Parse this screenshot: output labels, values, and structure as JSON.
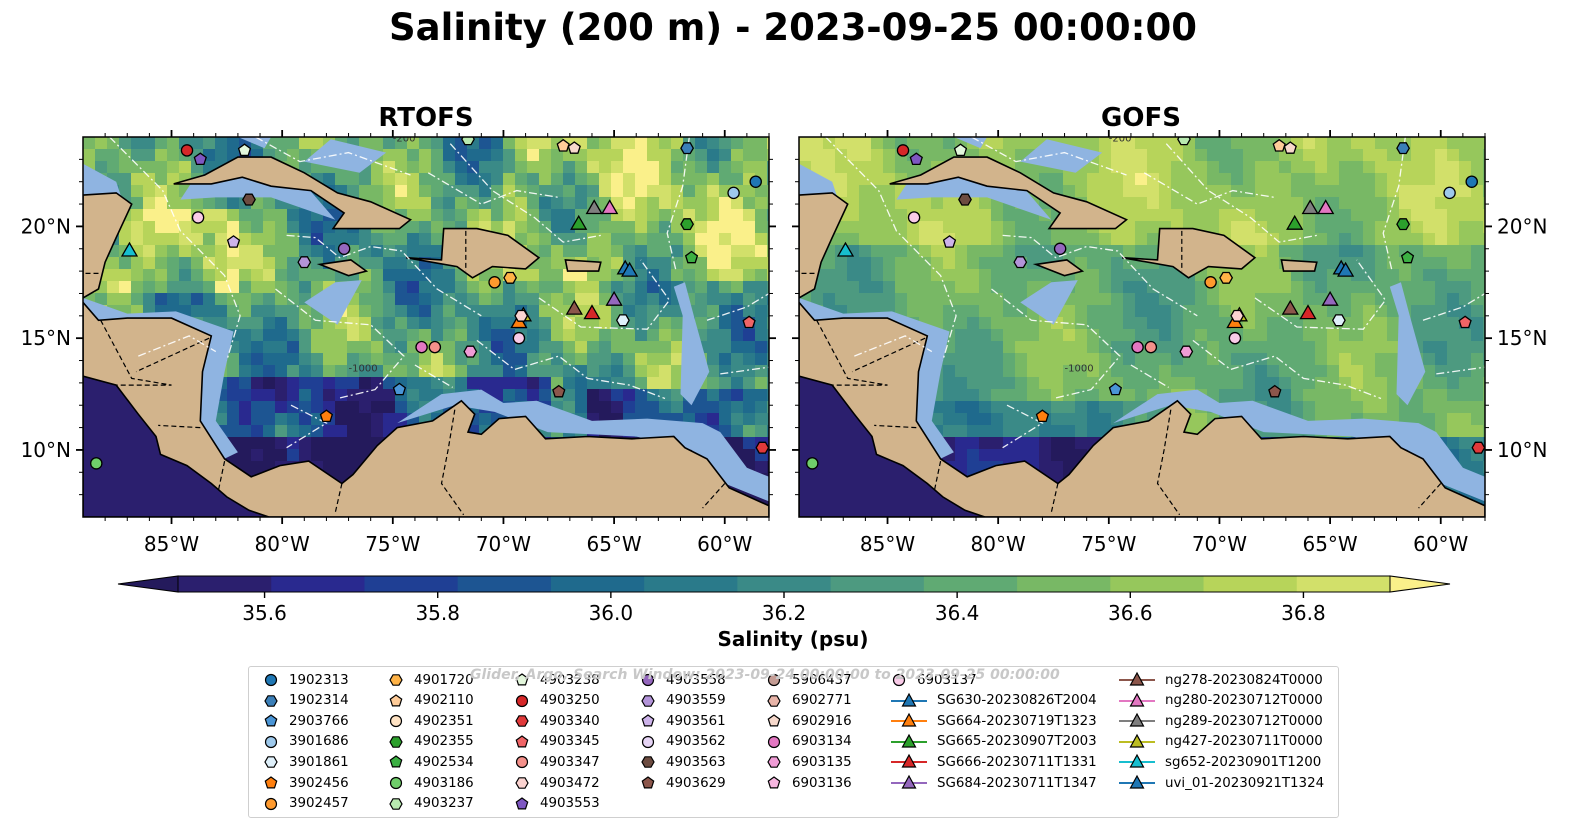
{
  "title": "Salinity (200 m) - 2023-09-25 00:00:00",
  "panels": [
    {
      "title": "RTOFS"
    },
    {
      "title": "GOFS"
    }
  ],
  "map": {
    "lon_range": [
      -89.0,
      -58.0
    ],
    "lat_range": [
      7.0,
      24.0
    ],
    "lon_ticks": [
      "85°W",
      "80°W",
      "75°W",
      "70°W",
      "65°W",
      "60°W"
    ],
    "lat_ticks": [
      "20°N",
      "15°N",
      "10°N"
    ],
    "land_color": "#d2b48c",
    "shelf_color": "#8fb4e1",
    "contour_labels": [
      "-1000",
      "-200"
    ]
  },
  "colorbar": {
    "label": "Salinity (psu)",
    "min": 35.5,
    "max": 36.9,
    "ticks": [
      "35.6",
      "35.8",
      "36.0",
      "36.2",
      "36.4",
      "36.6",
      "36.8"
    ],
    "colors": [
      "#2b1f6e",
      "#29298f",
      "#1f3f94",
      "#1d5592",
      "#1f6a8d",
      "#2a7a8a",
      "#3a8a87",
      "#4d9a80",
      "#60aa73",
      "#78b865",
      "#96c75c",
      "#b7d45a",
      "#d2e06a"
    ],
    "extend_high": "#faf08a",
    "extend_low": "#241a5c"
  },
  "legend": {
    "watermark": "Glider, Argo, Search Window: 2023-09-24 00:00:00 to 2023-09-25 00:00:00",
    "columns": [
      [
        {
          "label": "1902313",
          "marker": "circle",
          "color": "#1f77b4"
        },
        {
          "label": "1902314",
          "marker": "hexagon",
          "color": "#3b7fb8"
        },
        {
          "label": "2903766",
          "marker": "pentagon",
          "color": "#4a95d6"
        },
        {
          "label": "3901686",
          "marker": "circle",
          "color": "#9ec9ec"
        },
        {
          "label": "3901861",
          "marker": "hexagon",
          "color": "#dff0fa"
        },
        {
          "label": "3902456",
          "marker": "pentagon",
          "color": "#ff7f0e"
        },
        {
          "label": "3902457",
          "marker": "circle",
          "color": "#ff9a2e"
        }
      ],
      [
        {
          "label": "4901720",
          "marker": "hexagon",
          "color": "#ffb347"
        },
        {
          "label": "4902110",
          "marker": "pentagon",
          "color": "#ffcc99"
        },
        {
          "label": "4902351",
          "marker": "circle",
          "color": "#ffe3c4"
        },
        {
          "label": "4902355",
          "marker": "hexagon",
          "color": "#2ca02c"
        },
        {
          "label": "4902534",
          "marker": "pentagon",
          "color": "#3cb043"
        },
        {
          "label": "4903186",
          "marker": "circle",
          "color": "#6fce6a"
        },
        {
          "label": "4903237",
          "marker": "hexagon",
          "color": "#b8eab0"
        }
      ],
      [
        {
          "label": "4903238",
          "marker": "pentagon",
          "color": "#e3f7dc"
        },
        {
          "label": "4903250",
          "marker": "circle",
          "color": "#d62728"
        },
        {
          "label": "4903340",
          "marker": "hexagon",
          "color": "#e0393a"
        },
        {
          "label": "4903345",
          "marker": "pentagon",
          "color": "#f06466"
        },
        {
          "label": "4903347",
          "marker": "circle",
          "color": "#f4908a"
        },
        {
          "label": "4903472",
          "marker": "hexagon",
          "color": "#fbd3d0"
        },
        {
          "label": "4903553",
          "marker": "pentagon",
          "color": "#7e57c2"
        }
      ],
      [
        {
          "label": "4903558",
          "marker": "circle",
          "color": "#9467bd"
        },
        {
          "label": "4903559",
          "marker": "hexagon",
          "color": "#b394d9"
        },
        {
          "label": "4903561",
          "marker": "pentagon",
          "color": "#cdb3ea"
        },
        {
          "label": "4903562",
          "marker": "circle",
          "color": "#e6d4f5"
        },
        {
          "label": "4903563",
          "marker": "hexagon",
          "color": "#6d4c41"
        },
        {
          "label": "4903629",
          "marker": "pentagon",
          "color": "#8c564b"
        }
      ],
      [
        {
          "label": "5906437",
          "marker": "circle",
          "color": "#c49c94"
        },
        {
          "label": "6902771",
          "marker": "hexagon",
          "color": "#e8b4a8"
        },
        {
          "label": "6902916",
          "marker": "pentagon",
          "color": "#f7d9cc"
        },
        {
          "label": "6903134",
          "marker": "circle",
          "color": "#e377c2"
        },
        {
          "label": "6903135",
          "marker": "hexagon",
          "color": "#f09cd6"
        },
        {
          "label": "6903136",
          "marker": "pentagon",
          "color": "#f7b6e0"
        }
      ],
      [
        {
          "label": "6903137",
          "marker": "circle",
          "color": "#f9cbe8"
        },
        {
          "label": "SG630-20230826T2004",
          "marker": "tri",
          "color": "#1f77b4"
        },
        {
          "label": "SG664-20230719T1323",
          "marker": "tri",
          "color": "#ff7f0e"
        },
        {
          "label": "SG665-20230907T2003",
          "marker": "tri",
          "color": "#2ca02c"
        },
        {
          "label": "SG666-20230711T1331",
          "marker": "tri",
          "color": "#d62728"
        },
        {
          "label": "SG684-20230711T1347",
          "marker": "tri",
          "color": "#9467bd"
        }
      ],
      [
        {
          "label": "ng278-20230824T0000",
          "marker": "tri",
          "color": "#8c564b"
        },
        {
          "label": "ng280-20230712T0000",
          "marker": "tri",
          "color": "#e377c2"
        },
        {
          "label": "ng289-20230712T0000",
          "marker": "tri",
          "color": "#7f7f7f"
        },
        {
          "label": "ng427-20230711T0000",
          "marker": "tri",
          "color": "#bcbd22"
        },
        {
          "label": "sg652-20230901T1200",
          "marker": "tri",
          "color": "#17becf"
        },
        {
          "label": "uvi_01-20230921T1324",
          "marker": "tri",
          "color": "#1f77b4"
        }
      ]
    ]
  },
  "platforms": [
    {
      "id": "1902313",
      "lon": -58.6,
      "lat": 22.0
    },
    {
      "id": "1902314",
      "lon": -61.7,
      "lat": 23.5
    },
    {
      "id": "3901686",
      "lon": -59.6,
      "lat": 21.5
    },
    {
      "id": "4903250",
      "lon": -84.3,
      "lat": 23.4
    },
    {
      "id": "4903553",
      "lon": -83.7,
      "lat": 23.0
    },
    {
      "id": "4903238",
      "lon": -81.7,
      "lat": 23.4
    },
    {
      "id": "4903563",
      "lon": -81.5,
      "lat": 21.2
    },
    {
      "id": "6903137",
      "lon": -83.8,
      "lat": 20.4
    },
    {
      "id": "4903561",
      "lon": -82.2,
      "lat": 19.3
    },
    {
      "id": "4903558",
      "lon": -77.2,
      "lat": 19.0
    },
    {
      "id": "4903559",
      "lon": -79.0,
      "lat": 18.4
    },
    {
      "id": "sg652-20230901T1200",
      "lon": -86.9,
      "lat": 18.9
    },
    {
      "id": "4902110",
      "lon": -67.3,
      "lat": 23.6
    },
    {
      "id": "6902916",
      "lon": -66.8,
      "lat": 23.5
    },
    {
      "id": "4903237",
      "lon": -71.6,
      "lat": 23.9
    },
    {
      "id": "SG665-20230907T2003",
      "lon": -66.6,
      "lat": 20.1
    },
    {
      "id": "ng289-20230712T0000",
      "lon": -65.9,
      "lat": 20.8
    },
    {
      "id": "ng280-20230712T0000",
      "lon": -65.2,
      "lat": 20.8
    },
    {
      "id": "4902355",
      "lon": -61.7,
      "lat": 20.1
    },
    {
      "id": "4902534",
      "lon": -61.5,
      "lat": 18.6
    },
    {
      "id": "4901720",
      "lon": -69.7,
      "lat": 17.7
    },
    {
      "id": "3902457",
      "lon": -70.4,
      "lat": 17.5
    },
    {
      "id": "uvi_01-20230921T1324",
      "lon": -64.5,
      "lat": 18.1
    },
    {
      "id": "SG630-20230826T2004",
      "lon": -64.3,
      "lat": 18.0
    },
    {
      "id": "ng278-20230824T0000",
      "lon": -66.8,
      "lat": 16.3
    },
    {
      "id": "SG666-20230711T1331",
      "lon": -66.0,
      "lat": 16.1
    },
    {
      "id": "SG684-20230711T1347",
      "lon": -65.0,
      "lat": 16.7
    },
    {
      "id": "3901861",
      "lon": -64.6,
      "lat": 15.8
    },
    {
      "id": "ng427-20230711T0000",
      "lon": -69.1,
      "lat": 16.0
    },
    {
      "id": "SG664-20230719T1323",
      "lon": -69.3,
      "lat": 15.7
    },
    {
      "id": "4903472",
      "lon": -69.2,
      "lat": 16.0
    },
    {
      "id": "6903135",
      "lon": -71.5,
      "lat": 14.4
    },
    {
      "id": "4903347",
      "lon": -73.1,
      "lat": 14.6
    },
    {
      "id": "6903134",
      "lon": -73.7,
      "lat": 14.6
    },
    {
      "id": "6903137b",
      "lon": -69.3,
      "lat": 15.0
    },
    {
      "id": "4903345",
      "lon": -58.9,
      "lat": 15.7
    },
    {
      "id": "2903766",
      "lon": -74.7,
      "lat": 12.7
    },
    {
      "id": "3902456",
      "lon": -78.0,
      "lat": 11.5
    },
    {
      "id": "4903629",
      "lon": -67.5,
      "lat": 12.6
    },
    {
      "id": "4903340",
      "lon": -58.3,
      "lat": 10.1
    },
    {
      "id": "4903186",
      "lon": -88.4,
      "lat": 9.4
    }
  ]
}
